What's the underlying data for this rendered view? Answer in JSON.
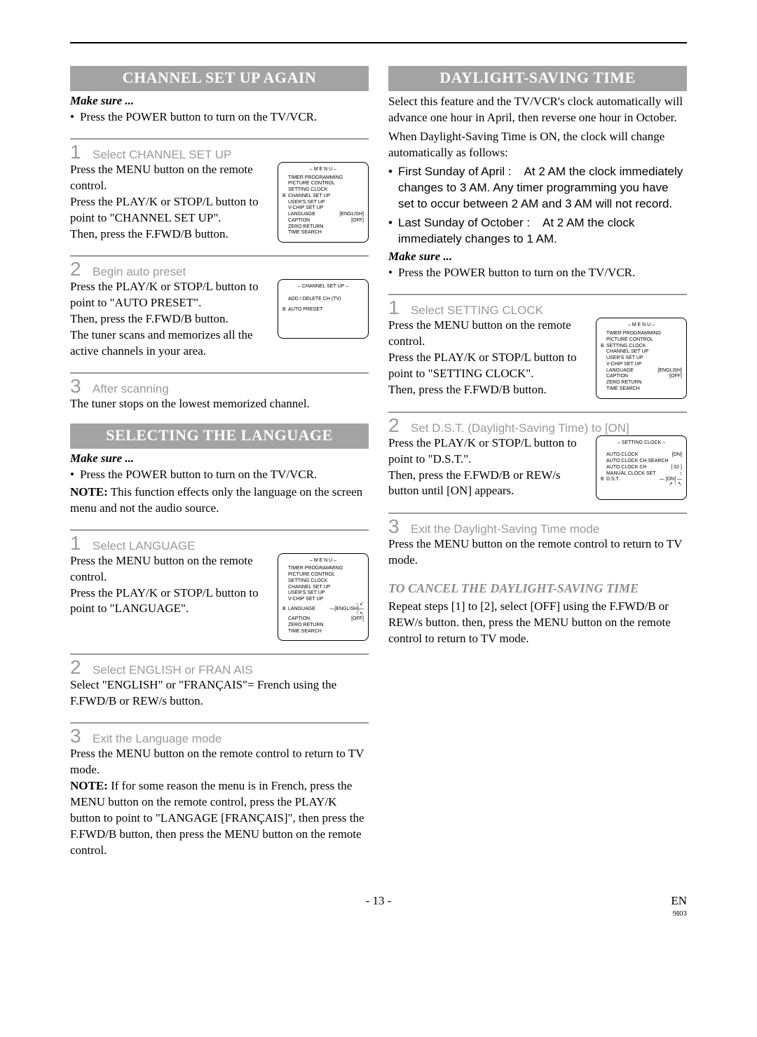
{
  "left": {
    "banner1": "CHANNEL SET UP AGAIN",
    "makesure1": "Make sure ...",
    "bullet1": "Press the POWER button to turn on the TV/VCR.",
    "s1": {
      "num": "1",
      "title": "Select  CHANNEL SET UP",
      "p1": "Press the MENU button on the remote control.",
      "p2": "Press the PLAY/K or STOP/L button to point to \"CHANNEL SET UP\".",
      "p3": "Then, press the F.FWD/B button."
    },
    "s2": {
      "num": "2",
      "title": "Begin auto preset",
      "p1": "Press the PLAY/K or STOP/L button to point to \"AUTO PRESET\".",
      "p2": "Then, press the F.FWD/B button.",
      "p3": "The tuner scans and memorizes all the active channels in your area."
    },
    "s3": {
      "num": "3",
      "title": "After scanning",
      "p1": "The tuner stops on the lowest memorized channel."
    },
    "banner2": "SELECTING THE LANGUAGE",
    "makesure2": "Make sure ...",
    "bullet2": "Press the POWER button to turn on the TV/VCR.",
    "note1a": "NOTE:",
    "note1b": " This function effects only the language on the screen menu and not the audio source.",
    "l1": {
      "num": "1",
      "title": "Select  LANGUAGE",
      "p1": "Press the MENU button on the remote control.",
      "p2": "Press the PLAY/K or STOP/L button to point to \"LANGUAGE\"."
    },
    "l2": {
      "num": "2",
      "title": "Select  ENGLISH  or  FRAN  AIS",
      "p1": "Select \"ENGLISH\" or \"FRANÇAIS\"= French using the F.FWD/B or REW/s button."
    },
    "l3": {
      "num": "3",
      "title": "Exit the Language mode",
      "p1": "Press the MENU button on the remote control to return to TV mode.",
      "note_a": "NOTE:",
      "note_b": " If for some reason the menu is in French, press the MENU button on the remote control, press the PLAY/K button to point to \"LANGAGE [FRANÇAIS]\", then press the F.FWD/B button, then press the MENU button on the remote control."
    }
  },
  "right": {
    "banner": "DAYLIGHT-SAVING TIME",
    "intro": "Select this feature and the TV/VCR's clock automatically will advance one hour in April, then reverse one hour in October.",
    "intro2": "When Daylight-Saving Time is ON, the clock will change automatically as follows:",
    "b1a": "First Sunday of April :",
    "b1b": " At 2 AM the clock immediately changes to 3 AM. Any timer programming you have set to occur between 2 AM and 3 AM will not record.",
    "b2a": "Last Sunday of October :",
    "b2b": " At 2 AM the clock immediately changes to 1 AM.",
    "makesure": "Make sure ...",
    "bullet": "Press the POWER button to turn on the TV/VCR.",
    "d1": {
      "num": "1",
      "title": "Select  SETTING CLOCK",
      "p1": "Press the MENU button on the remote control.",
      "p2": "Press the PLAY/K or STOP/L button to point to \"SETTING CLOCK\".",
      "p3": "Then, press the F.FWD/B button."
    },
    "d2": {
      "num": "2",
      "title": "Set  D.S.T. (Daylight-Saving Time) to [ON]",
      "p1": "Press the PLAY/K or STOP/L button to point to \"D.S.T.\".",
      "p2": "Then, press the F.FWD/B or REW/s button until [ON] appears."
    },
    "d3": {
      "num": "3",
      "title": "Exit the Daylight-Saving Time mode",
      "p1": "Press the MENU button on the remote control to return to TV mode."
    },
    "cancel_head": "TO CANCEL THE DAYLIGHT-SAVING TIME",
    "cancel_body": "Repeat steps [1] to [2], select [OFF] using the F.FWD/B or REW/s button. then, press the MENU button on the remote control to return to TV mode."
  },
  "osd_menu": {
    "title": "– M E N U –",
    "items": [
      "TIMER PROGRAMMING",
      "PICTURE CONTROL",
      "SETTING CLOCK",
      "CHANNEL SET UP",
      "USER'S SET UP",
      "V-CHIP SET UP",
      "LANGUAGE",
      "CAPTION",
      "ZERO RETURN",
      "TIME SEARCH"
    ],
    "lang_val": "[ENGLISH]",
    "cap_val": "[OFF]",
    "mark_channel": 3,
    "mark_lang": 6,
    "mark_clock": 2
  },
  "osd_ch": {
    "title": "– CHANNEL SET UP –",
    "row1": "ADD / DELETE CH (TV)",
    "row2": "AUTO PRESET"
  },
  "osd_set": {
    "title": "– SETTING CLOCK –",
    "r1l": "AUTO CLOCK",
    "r1v": "[ON]",
    "r2l": "AUTO CLOCK CH SEARCH",
    "r3l": "AUTO CLOCK CH",
    "r3v": "[ 02 ]",
    "r4l": "MANUAL CLOCK SET",
    "r5l": "D.S.T.",
    "r5v": "[ON]"
  },
  "footer": {
    "page": "- 13 -",
    "en": "EN",
    "code": "9I03"
  }
}
